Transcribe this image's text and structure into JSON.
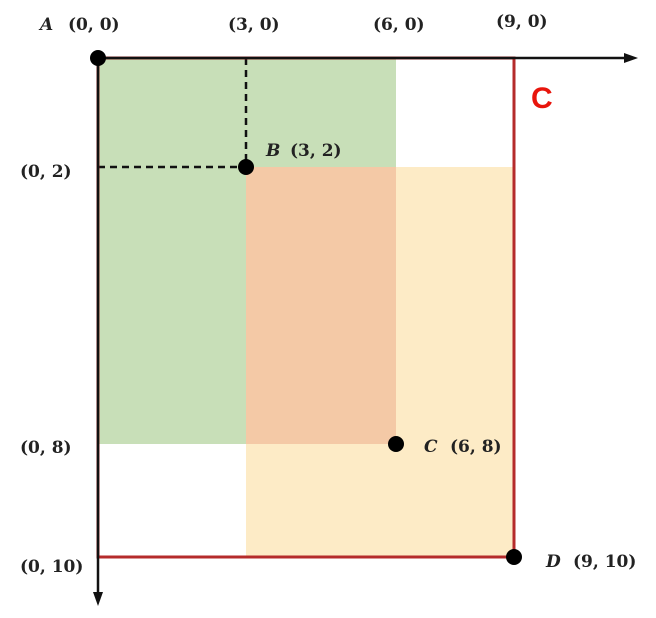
{
  "colors": {
    "green": "#c8dfb8",
    "salmon": "#f4c9a6",
    "yellow": "#fdebc6",
    "red_border": "#b52b2b",
    "corner_label": "#e8150c",
    "axis": "#111111",
    "dot": "#000000"
  },
  "corner_label": "C",
  "labels": {
    "top": [
      "(3, 0)",
      "(6, 0)",
      "(9, 0)"
    ],
    "left": [
      "(0, 2)",
      "(0, 8)",
      "(0, 10)"
    ]
  },
  "points": {
    "A": {
      "name": "A",
      "coord": "(0, 0)"
    },
    "B": {
      "name": "B",
      "coord": "(3, 2)"
    },
    "C": {
      "name": "C",
      "coord": "(6, 8)"
    },
    "D": {
      "name": "D",
      "coord": "(9, 10)"
    }
  },
  "rects": [
    {
      "id": "green-rect",
      "from": [
        0,
        0
      ],
      "to": [
        6,
        8
      ],
      "color": "green"
    },
    {
      "id": "yellow-rect",
      "from": [
        3,
        2
      ],
      "to": [
        9,
        10
      ],
      "color": "yellow"
    },
    {
      "id": "overlap-rect",
      "from": [
        3,
        2
      ],
      "to": [
        6,
        8
      ],
      "color": "salmon"
    }
  ]
}
